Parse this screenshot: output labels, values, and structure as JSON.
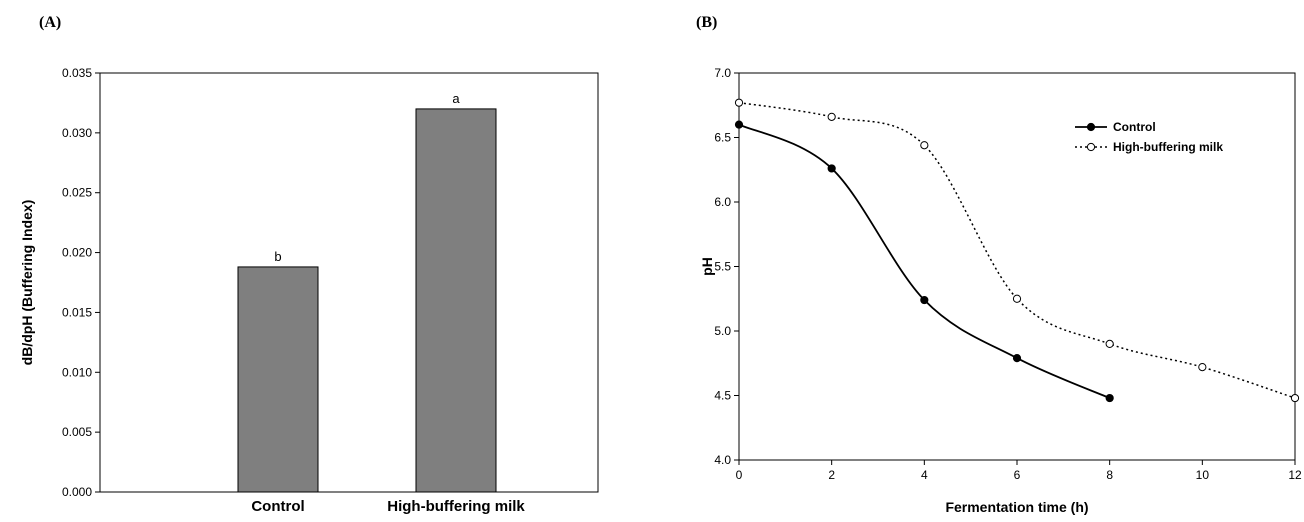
{
  "chart_data": [
    {
      "panel": "(A)",
      "type": "bar",
      "categories": [
        "Control",
        "High-buffering milk"
      ],
      "values": [
        0.0188,
        0.032
      ],
      "bar_labels": [
        "b",
        "a"
      ],
      "bar_color": "#7f7f7f",
      "ylabel": "dB/dpH (Buffering Index)",
      "ylim": [
        0,
        0.035
      ],
      "yticks": [
        "0.000",
        "0.005",
        "0.010",
        "0.015",
        "0.020",
        "0.025",
        "0.030",
        "0.035"
      ],
      "grid": false
    },
    {
      "panel": "(B)",
      "type": "line",
      "xlabel": "Fermentation time (h)",
      "ylabel": "pH",
      "xlim": [
        0,
        12
      ],
      "ylim": [
        4.0,
        7.0
      ],
      "xticks": [
        "0",
        "2",
        "4",
        "6",
        "8",
        "10",
        "12"
      ],
      "yticks": [
        "4.0",
        "4.5",
        "5.0",
        "5.5",
        "6.0",
        "6.5",
        "7.0"
      ],
      "legend_position": "top-right",
      "grid": false,
      "series": [
        {
          "name": "Control",
          "style": "solid",
          "marker": "filled-circle",
          "x": [
            0,
            2,
            4,
            6,
            8
          ],
          "y": [
            6.6,
            6.26,
            5.24,
            4.79,
            4.48
          ]
        },
        {
          "name": "High-buffering milk",
          "style": "dotted",
          "marker": "open-circle",
          "x": [
            0,
            2,
            4,
            6,
            8,
            10,
            12
          ],
          "y": [
            6.77,
            6.66,
            6.44,
            5.25,
            4.9,
            4.72,
            4.48
          ]
        }
      ]
    }
  ]
}
